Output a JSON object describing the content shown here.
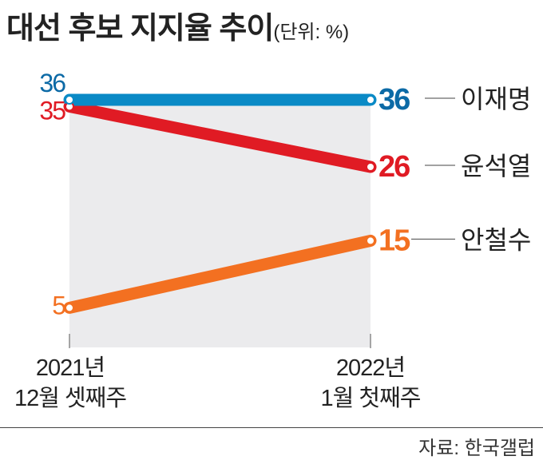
{
  "title": "대선 후보 지지율 추이",
  "unit": "(단위: %)",
  "source": "자료: 한국갤럽",
  "chart_data": {
    "type": "line",
    "title": "대선 후보 지지율 추이",
    "unit": "%",
    "categories": [
      [
        "2021년",
        "12월 셋째주"
      ],
      [
        "2022년",
        "1월 첫째주"
      ]
    ],
    "series": [
      {
        "name": "이재명",
        "values": [
          36,
          36
        ],
        "color": "#0a8ac6",
        "label_color": "#0c6aa6"
      },
      {
        "name": "윤석열",
        "values": [
          35,
          26
        ],
        "color": "#e01b24",
        "label_color": "#e01b24"
      },
      {
        "name": "안철수",
        "values": [
          5,
          15
        ],
        "color": "#f37021",
        "label_color": "#f37021"
      }
    ],
    "background": "#ebebed"
  }
}
